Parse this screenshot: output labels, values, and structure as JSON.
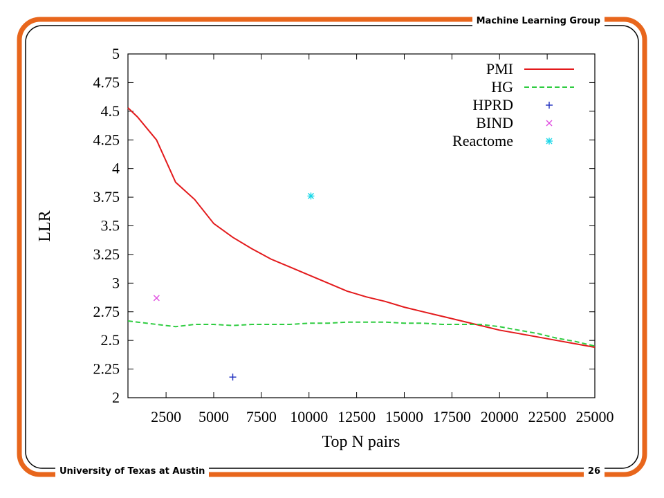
{
  "header": {
    "title": "Machine Learning Group"
  },
  "footer": {
    "organization": "University of Texas at Austin",
    "page_number": "26"
  },
  "theme": {
    "frame_color": "#e8661c"
  },
  "chart_data": {
    "type": "line",
    "title": "",
    "xlabel": "Top N pairs",
    "ylabel": "LLR",
    "xlim": [
      500,
      25000
    ],
    "ylim": [
      2,
      5
    ],
    "xticks": [
      2500,
      5000,
      7500,
      10000,
      12500,
      15000,
      17500,
      20000,
      22500,
      25000
    ],
    "yticks": [
      2,
      2.25,
      2.5,
      2.75,
      3,
      3.25,
      3.5,
      3.75,
      4,
      4.25,
      4.5,
      4.75,
      5
    ],
    "ytick_labels": [
      "2",
      "2.25",
      "2.5",
      "2.75",
      "3",
      "3.25",
      "3.5",
      "3.75",
      "4",
      "4.25",
      "4.5",
      "4.75",
      "5"
    ],
    "legend_position": "top-right",
    "grid": false,
    "series": [
      {
        "name": "PMI",
        "style": "line",
        "color": "#e31a1c",
        "x": [
          500,
          1000,
          2000,
          3000,
          4000,
          5000,
          6000,
          7000,
          8000,
          9000,
          10000,
          11000,
          12000,
          13000,
          14000,
          15000,
          16000,
          17000,
          18000,
          19000,
          20000,
          21000,
          22000,
          23000,
          24000,
          25000
        ],
        "y": [
          4.53,
          4.45,
          4.25,
          3.88,
          3.73,
          3.52,
          3.4,
          3.3,
          3.21,
          3.14,
          3.07,
          3.0,
          2.93,
          2.88,
          2.84,
          2.79,
          2.75,
          2.71,
          2.67,
          2.63,
          2.59,
          2.56,
          2.53,
          2.5,
          2.47,
          2.44
        ]
      },
      {
        "name": "HG",
        "style": "dashed",
        "color": "#2ecc40",
        "x": [
          500,
          1000,
          2000,
          3000,
          4000,
          5000,
          6000,
          7000,
          8000,
          9000,
          10000,
          11000,
          12000,
          13000,
          14000,
          15000,
          16000,
          17000,
          18000,
          19000,
          20000,
          21000,
          22000,
          23000,
          24000,
          25000
        ],
        "y": [
          2.67,
          2.66,
          2.64,
          2.62,
          2.64,
          2.64,
          2.63,
          2.64,
          2.64,
          2.64,
          2.65,
          2.65,
          2.66,
          2.66,
          2.66,
          2.65,
          2.65,
          2.64,
          2.64,
          2.64,
          2.62,
          2.59,
          2.56,
          2.52,
          2.49,
          2.45
        ]
      },
      {
        "name": "HPRD",
        "style": "marker",
        "marker": "plus",
        "color": "#1f2fbf",
        "x": [
          6000
        ],
        "y": [
          2.18
        ]
      },
      {
        "name": "BIND",
        "style": "marker",
        "marker": "cross",
        "color": "#e04de0",
        "x": [
          2000
        ],
        "y": [
          2.87
        ]
      },
      {
        "name": "Reactome",
        "style": "marker",
        "marker": "star",
        "color": "#19d7e8",
        "x": [
          10100
        ],
        "y": [
          3.76
        ]
      }
    ]
  }
}
